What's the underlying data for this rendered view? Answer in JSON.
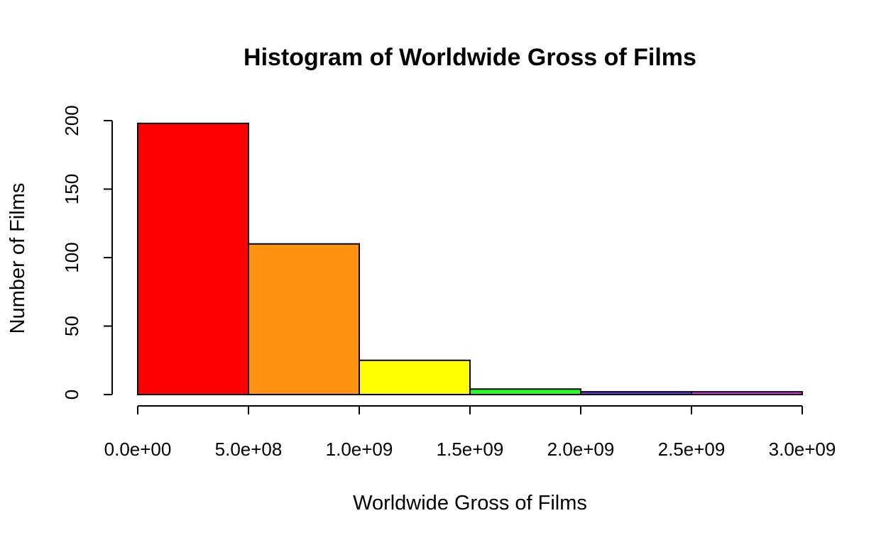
{
  "chart_data": {
    "type": "bar",
    "subtype": "histogram",
    "title": "Histogram of Worldwide Gross of Films",
    "xlabel": "Worldwide Gross of Films",
    "ylabel": "Number of Films",
    "bins": [
      {
        "from": 0,
        "to": 500000000,
        "count": 198,
        "color": "#FF0000"
      },
      {
        "from": 500000000,
        "to": 1000000000,
        "count": 110,
        "color": "#FF9210"
      },
      {
        "from": 1000000000,
        "to": 1500000000,
        "count": 25,
        "color": "#FFFF00"
      },
      {
        "from": 1500000000,
        "to": 2000000000,
        "count": 4,
        "color": "#24FF24"
      },
      {
        "from": 2000000000,
        "to": 2500000000,
        "count": 2,
        "color": "#7B2FFF"
      },
      {
        "from": 2500000000,
        "to": 3000000000,
        "count": 2,
        "color": "#FF24FF"
      }
    ],
    "xlim": [
      0,
      3000000000
    ],
    "ylim": [
      0,
      200
    ],
    "x_ticks": [
      0,
      500000000,
      1000000000,
      1500000000,
      2000000000,
      2500000000,
      3000000000
    ],
    "x_tick_labels": [
      "0.0e+00",
      "5.0e+08",
      "1.0e+09",
      "1.5e+09",
      "2.0e+09",
      "2.5e+09",
      "3.0e+09"
    ],
    "y_ticks": [
      0,
      50,
      100,
      150,
      200
    ],
    "y_tick_labels": [
      "0",
      "50",
      "100",
      "150",
      "200"
    ],
    "grid": false,
    "legend": "none"
  }
}
